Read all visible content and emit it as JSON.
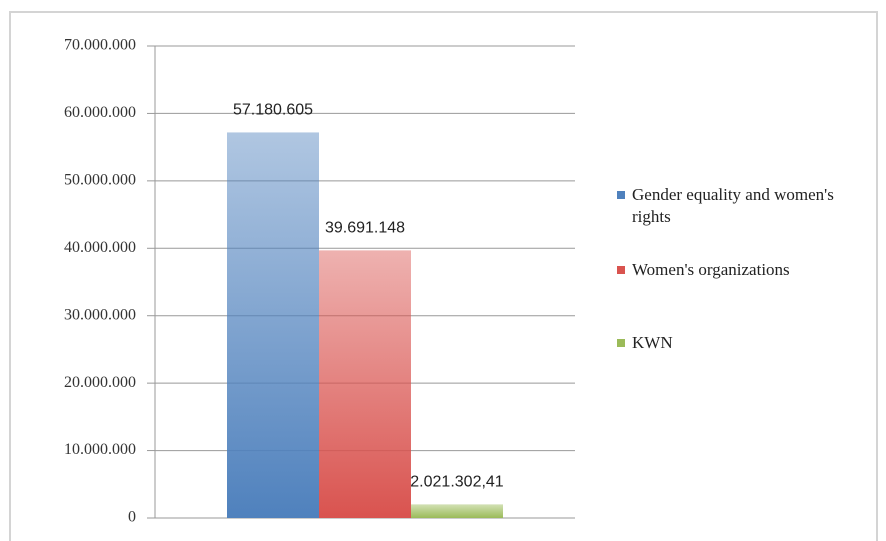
{
  "chart_data": {
    "type": "bar",
    "categories": [
      null
    ],
    "series": [
      {
        "name": "Gender equality and women's rights",
        "color": "#4f81bd",
        "values": [
          57180605
        ],
        "value_labels": [
          "57.180.605"
        ]
      },
      {
        "name": "Women's organizations",
        "color": "#d9534f",
        "values": [
          39691148
        ],
        "value_labels": [
          "39.691.148"
        ]
      },
      {
        "name": "KWN",
        "color": "#9bbb59",
        "values": [
          2021302.41
        ],
        "value_labels": [
          "2.021.302,41"
        ]
      }
    ],
    "ylim": [
      0,
      70000000
    ],
    "yticks": [
      {
        "value": 0,
        "label": "0"
      },
      {
        "value": 10000000,
        "label": "10.000.000"
      },
      {
        "value": 20000000,
        "label": "20.000.000"
      },
      {
        "value": 30000000,
        "label": "30.000.000"
      },
      {
        "value": 40000000,
        "label": "40.000.000"
      },
      {
        "value": 50000000,
        "label": "50.000.000"
      },
      {
        "value": 60000000,
        "label": "60.000.000"
      },
      {
        "value": 70000000,
        "label": "70.000.000"
      }
    ],
    "grid": true,
    "legend": "right"
  }
}
